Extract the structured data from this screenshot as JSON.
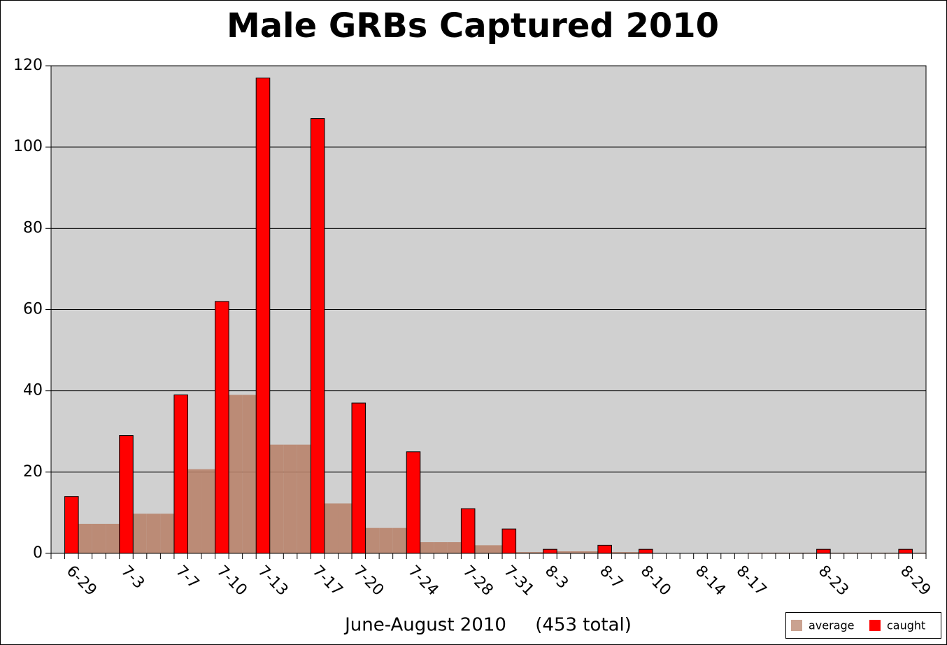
{
  "chart_data": {
    "type": "bar",
    "title": "Male GRBs Captured 2010",
    "x_label": "June-August 2010     (453 total)",
    "categories": [
      null,
      "6-29",
      null,
      null,
      null,
      "7-3",
      null,
      null,
      null,
      "7-7",
      null,
      null,
      "7-10",
      null,
      null,
      "7-13",
      null,
      null,
      null,
      "7-17",
      null,
      null,
      "7-20",
      null,
      null,
      null,
      "7-24",
      null,
      null,
      null,
      "7-28",
      null,
      null,
      "7-31",
      null,
      null,
      "8-3",
      null,
      null,
      null,
      "8-7",
      null,
      null,
      "8-10",
      null,
      null,
      null,
      "8-14",
      null,
      null,
      "8-17",
      null,
      null,
      null,
      null,
      null,
      "8-23",
      null,
      null,
      null,
      null,
      null,
      "8-29",
      null
    ],
    "series": [
      {
        "name": "average",
        "color": "#b8836b",
        "values": [
          null,
          null,
          7.25,
          7.25,
          7.25,
          null,
          9.75,
          9.75,
          9.75,
          null,
          20.7,
          20.7,
          null,
          39,
          39,
          null,
          26.75,
          26.75,
          26.75,
          null,
          12.3,
          12.3,
          null,
          6.25,
          6.25,
          6.25,
          null,
          2.75,
          2.75,
          2.75,
          null,
          2,
          2,
          null,
          0.33,
          0.33,
          null,
          0.5,
          0.5,
          0.5,
          null,
          0.33,
          0.33,
          null,
          0,
          0,
          0,
          null,
          0,
          0,
          null,
          0.17,
          0.17,
          0.17,
          0.17,
          0.17,
          null,
          0.17,
          0.17,
          0.17,
          0.17,
          0.17,
          null,
          0.17
        ]
      },
      {
        "name": "caught",
        "color": "#ff0000",
        "values": [
          null,
          14,
          null,
          null,
          null,
          29,
          null,
          null,
          null,
          39,
          null,
          null,
          62,
          null,
          null,
          117,
          null,
          null,
          null,
          107,
          null,
          null,
          37,
          null,
          null,
          null,
          25,
          null,
          null,
          null,
          11,
          null,
          null,
          6,
          null,
          null,
          1,
          null,
          null,
          null,
          2,
          null,
          null,
          1,
          null,
          null,
          null,
          0,
          null,
          null,
          0,
          null,
          null,
          null,
          null,
          null,
          1,
          null,
          null,
          null,
          null,
          null,
          1,
          null
        ]
      }
    ],
    "ylim": [
      0,
      120
    ],
    "yticks": [
      0,
      20,
      40,
      60,
      80,
      100,
      120
    ],
    "grid": true,
    "legend": "bottom-right"
  }
}
